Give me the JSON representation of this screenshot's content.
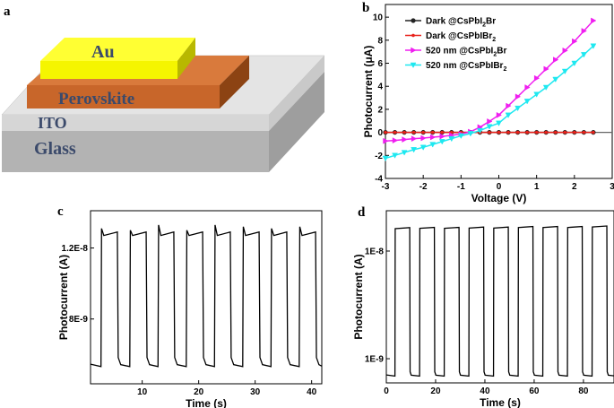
{
  "panel_labels": {
    "a": "a",
    "b": "b",
    "c": "c",
    "d": "d"
  },
  "device": {
    "layers": [
      "Au",
      "Perovskite",
      "ITO",
      "Glass"
    ],
    "colors": {
      "Au": "#f5f500",
      "Perovskite": "#c8662a",
      "ITO": "#dcdcdc",
      "Glass": "#b0b0b0"
    }
  },
  "chart_data": [
    {
      "panel": "b",
      "type": "line",
      "xlabel": "Voltage (V)",
      "ylabel": "Photocurrent (μA)",
      "xlim": [
        -3,
        3
      ],
      "ylim": [
        -4,
        11.1
      ],
      "xticks": [
        "-3",
        "-2",
        "-1",
        "0",
        "1",
        "2",
        "3"
      ],
      "xtick_values": [
        -3,
        -2,
        -1,
        0,
        1,
        2,
        3
      ],
      "yticks": [
        "-4",
        "-2",
        "0",
        "2",
        "4",
        "6",
        "8",
        "10"
      ],
      "ytick_values": [
        -4,
        -2,
        0,
        2,
        4,
        6,
        8,
        10
      ],
      "legend_position": "top-left",
      "x": [
        -3,
        -2.75,
        -2.5,
        -2.25,
        -2,
        -1.75,
        -1.5,
        -1.25,
        -1,
        -0.75,
        -0.5,
        -0.25,
        0,
        0.25,
        0.5,
        0.75,
        1,
        1.25,
        1.5,
        1.75,
        2,
        2.25,
        2.5
      ],
      "series": [
        {
          "name": "Dark @CsPbI2Br",
          "name_main": "Dark @CsPbI",
          "name_sub": "2",
          "name_tail": "Br",
          "color": "#222222",
          "marker": "circle",
          "values": [
            0,
            0,
            0,
            0,
            0,
            0,
            0,
            0,
            0,
            0,
            0,
            0,
            0,
            0,
            0,
            0,
            0,
            0,
            0,
            0,
            0,
            0,
            0
          ]
        },
        {
          "name": "Dark @CsPbIBr2",
          "name_main": "Dark @CsPbIBr",
          "name_sub": "2",
          "name_tail": "",
          "color": "#e8211a",
          "marker": "dot",
          "values": [
            0,
            0,
            0,
            0,
            0,
            0,
            0,
            0,
            0,
            0,
            0,
            0,
            0,
            0,
            0,
            0,
            0,
            0,
            0,
            0,
            0,
            0,
            0
          ]
        },
        {
          "name": "520 nm @CsPbI2Br",
          "name_main": "520 nm @CsPbI",
          "name_sub": "2",
          "name_tail": "Br",
          "color": "#f01ef0",
          "marker": "triangle-right",
          "values": [
            -0.75,
            -0.7,
            -0.62,
            -0.55,
            -0.5,
            -0.42,
            -0.35,
            -0.25,
            -0.15,
            0.05,
            0.45,
            0.95,
            1.5,
            2.3,
            3.1,
            3.9,
            4.7,
            5.5,
            6.3,
            7.1,
            7.9,
            8.8,
            9.7
          ]
        },
        {
          "name": "520 nm @CsPbIBr2",
          "name_main": "520 nm @CsPbIBr",
          "name_sub": "2",
          "name_tail": "",
          "color": "#1ee8f0",
          "marker": "triangle-down",
          "values": [
            -2.25,
            -2.0,
            -1.75,
            -1.5,
            -1.3,
            -1.05,
            -0.8,
            -0.55,
            -0.3,
            -0.1,
            0.15,
            0.5,
            0.8,
            1.5,
            2.1,
            2.7,
            3.3,
            3.9,
            4.6,
            5.3,
            6.0,
            6.75,
            7.5
          ]
        }
      ]
    },
    {
      "panel": "c",
      "type": "line",
      "xlabel": "Time (s)",
      "ylabel": "Photocurrent (A)",
      "xlim": [
        0.85,
        41.8
      ],
      "ylim": [
        4.35e-09,
        1.41e-08
      ],
      "xticks": [
        "10",
        "20",
        "30",
        "40"
      ],
      "xtick_values": [
        10,
        20,
        30,
        40
      ],
      "yticks": [
        "8E-9",
        "1.2E-8"
      ],
      "ytick_values": [
        8e-09,
        1.2e-08
      ],
      "dark_level": 5.4e-09,
      "pulses": [
        {
          "on": 2.7,
          "off": 5.6,
          "high": 1.29e-08,
          "peak": 1.31e-08
        },
        {
          "on": 7.8,
          "off": 10.7,
          "high": 1.29e-08,
          "peak": 1.3e-08
        },
        {
          "on": 12.8,
          "off": 15.6,
          "high": 1.29e-08,
          "peak": 1.33e-08
        },
        {
          "on": 17.8,
          "off": 20.7,
          "high": 1.29e-08,
          "peak": 1.3e-08
        },
        {
          "on": 22.8,
          "off": 25.6,
          "high": 1.29e-08,
          "peak": 1.33e-08
        },
        {
          "on": 27.8,
          "off": 30.7,
          "high": 1.29e-08,
          "peak": 1.32e-08
        },
        {
          "on": 32.8,
          "off": 35.6,
          "high": 1.29e-08,
          "peak": 1.31e-08
        },
        {
          "on": 37.8,
          "off": 40.7,
          "high": 1.29e-08,
          "peak": 1.32e-08
        }
      ]
    },
    {
      "panel": "d",
      "type": "line",
      "xlabel": "Time (s)",
      "ylabel": "Photocurrent (A)",
      "xlim": [
        0,
        92.4
      ],
      "ylim": [
        5.96e-10,
        2.37e-08
      ],
      "yscale": "log",
      "xticks": [
        "0",
        "20",
        "40",
        "60",
        "80"
      ],
      "xtick_values": [
        0,
        20,
        40,
        60,
        80
      ],
      "yticks": [
        "1E-9",
        "1E-8"
      ],
      "ytick_values": [
        1e-09,
        1e-08
      ],
      "dark_level": 7e-10,
      "pulses": [
        {
          "on": 3.5,
          "off": 9.5,
          "high": 1.65e-08
        },
        {
          "on": 13.5,
          "off": 19.5,
          "high": 1.66e-08
        },
        {
          "on": 23.5,
          "off": 29.5,
          "high": 1.66e-08
        },
        {
          "on": 33.5,
          "off": 39.5,
          "high": 1.67e-08
        },
        {
          "on": 43.5,
          "off": 49.5,
          "high": 1.67e-08
        },
        {
          "on": 53.5,
          "off": 59.5,
          "high": 1.69e-08
        },
        {
          "on": 63.5,
          "off": 69.5,
          "high": 1.69e-08
        },
        {
          "on": 73.5,
          "off": 79.5,
          "high": 1.69e-08
        },
        {
          "on": 83.5,
          "off": 89.5,
          "high": 1.71e-08
        }
      ]
    }
  ]
}
